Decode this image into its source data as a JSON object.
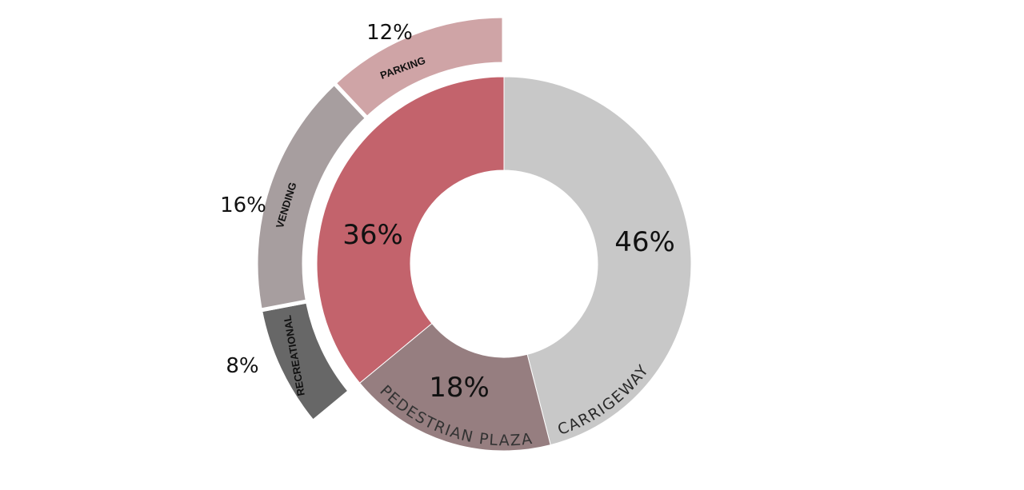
{
  "chart_data": {
    "type": "pie",
    "inner": {
      "slices": [
        {
          "label": "CARRIGEWAY",
          "value": 46,
          "value_label": "46%",
          "color": "#c8c8c8"
        },
        {
          "label": "PEDESTRIAN PLAZA",
          "value": 18,
          "value_label": "18%",
          "color": "#967e80"
        },
        {
          "label": "",
          "value": 36,
          "value_label": "36%",
          "color": "#c3636c"
        }
      ]
    },
    "outer": {
      "slices": [
        {
          "label": "RECREATIONAL",
          "value": 8,
          "value_label": "8%",
          "color": "#676767"
        },
        {
          "label": "VENDING",
          "value": 16,
          "value_label": "16%",
          "color": "#a79e9f"
        },
        {
          "label": "PARKING",
          "value": 12,
          "value_label": "12%",
          "color": "#cfa4a6"
        }
      ]
    }
  }
}
